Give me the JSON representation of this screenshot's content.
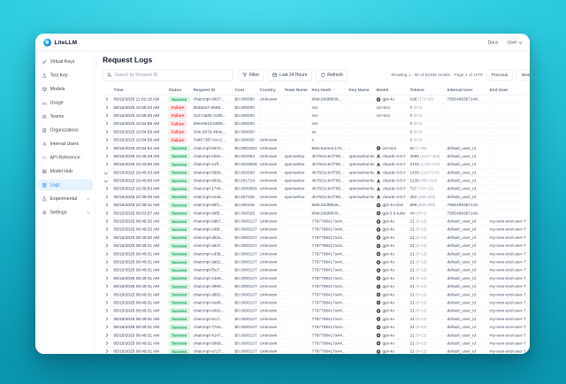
{
  "colors": {
    "accent": "#1677ff",
    "success_bg": "#d9f5e6",
    "success_text": "#149a50",
    "failure_bg": "#fde6e6",
    "failure_text": "#e5484d",
    "background_top": "#4bdcec",
    "background_bottom": "#0b97b1"
  },
  "navbar": {
    "brand": "LiteLLM",
    "docs_label": "Docs",
    "user_label": "User"
  },
  "sidebar": {
    "items": [
      {
        "label": "Virtual Keys",
        "icon": "key-icon",
        "active": false,
        "submenu": false
      },
      {
        "label": "Test Key",
        "icon": "test-key-icon",
        "active": false,
        "submenu": false
      },
      {
        "label": "Models",
        "icon": "models-icon",
        "active": false,
        "submenu": false
      },
      {
        "label": "Usage",
        "icon": "usage-icon",
        "active": false,
        "submenu": false
      },
      {
        "label": "Teams",
        "icon": "teams-icon",
        "active": false,
        "submenu": false
      },
      {
        "label": "Organizations",
        "icon": "organizations-icon",
        "active": false,
        "submenu": false
      },
      {
        "label": "Internal Users",
        "icon": "internal-users-icon",
        "active": false,
        "submenu": false
      },
      {
        "label": "API Reference",
        "icon": "api-reference-icon",
        "active": false,
        "submenu": false
      },
      {
        "label": "Model Hub",
        "icon": "model-hub-icon",
        "active": false,
        "submenu": false
      },
      {
        "label": "Logs",
        "icon": "logs-icon",
        "active": true,
        "submenu": false
      },
      {
        "label": "Experimental",
        "icon": "experimental-icon",
        "active": false,
        "submenu": true
      },
      {
        "label": "Settings",
        "icon": "settings-icon",
        "active": false,
        "submenu": true
      }
    ]
  },
  "page": {
    "title": "Request Logs"
  },
  "toolbar": {
    "search_placeholder": "Search by Request ID",
    "filter_label": "Filter",
    "range_label": "Last 24 Hours",
    "refresh_label": "Refresh"
  },
  "pagination": {
    "showing": "Showing 1 - 50 of 53484 results",
    "page": "Page 1 of 1070",
    "previous_label": "Previous",
    "next_label": "Next"
  },
  "table": {
    "columns": [
      "",
      "Time",
      "Status",
      "Request ID",
      "Cost",
      "Country",
      "Team Name",
      "Key Hash",
      "Key Name",
      "Model",
      "Tokens",
      "Internal User",
      "End User"
    ],
    "rows": [
      {
        "expanded": false,
        "time": "05/15/2025 11:02:18 AM",
        "status": "Success",
        "request_id": "chatcmpl-8807...",
        "cost": "$0.000080",
        "country": "Unknown",
        "team": "-",
        "key_hash": "88dc28d9f836...",
        "key_name": "-",
        "model": "gpt-4o",
        "provider": "openai",
        "tokens": "198",
        "tokens_detail": "(173+25)",
        "internal_user": "7955489387148...",
        "end_user": "-"
      },
      {
        "expanded": false,
        "time": "05/15/2025 10:55:02 AM",
        "status": "Failure",
        "request_id": "d8da5a7-eb88...",
        "cost": "$0.000000",
        "country": "-",
        "team": "-",
        "key_hash": "sss",
        "key_name": "-",
        "model": "o3-mini",
        "provider": "",
        "tokens": "0",
        "tokens_detail": "(0+0)",
        "internal_user": "-",
        "end_user": "-"
      },
      {
        "expanded": false,
        "time": "05/15/2025 10:55:00 AM",
        "status": "Failure",
        "request_id": "4347da9b-318b...",
        "cost": "$0.000000",
        "country": "-",
        "team": "-",
        "key_hash": "sss",
        "key_name": "-",
        "model": "o3-mini",
        "provider": "",
        "tokens": "0",
        "tokens_detail": "(0+0)",
        "internal_user": "-",
        "end_user": "-"
      },
      {
        "expanded": false,
        "time": "05/15/2025 10:54:59 AM",
        "status": "Failure",
        "request_id": "a9ee681d-b8b8...",
        "cost": "$0.000000",
        "country": "-",
        "team": "-",
        "key_hash": "sss",
        "key_name": "-",
        "model": "",
        "provider": "",
        "tokens": "0",
        "tokens_detail": "(0+0)",
        "internal_user": "-",
        "end_user": "-"
      },
      {
        "expanded": false,
        "time": "05/15/2025 10:54:59 AM",
        "status": "Failure",
        "request_id": "334c387d-4b4e...",
        "cost": "$0.000000",
        "country": "-",
        "team": "-",
        "key_hash": "ss",
        "key_name": "-",
        "model": "",
        "provider": "",
        "tokens": "0",
        "tokens_detail": "(0+0)",
        "internal_user": "-",
        "end_user": "-"
      },
      {
        "expanded": false,
        "time": "05/15/2025 10:54:58 AM",
        "status": "Failure",
        "request_id": "7eb67387-bcc2...",
        "cost": "$0.000000",
        "country": "Unknown",
        "team": "-",
        "key_hash": "s",
        "key_name": "-",
        "model": "",
        "provider": "",
        "tokens": "0",
        "tokens_detail": "(0+0)",
        "internal_user": "-",
        "end_user": "-"
      },
      {
        "expanded": false,
        "time": "05/15/2025 10:54:54 AM",
        "status": "Success",
        "request_id": "chatcmpl-b87e...",
        "cost": "$0.0003382",
        "country": "Unknown",
        "team": "-",
        "key_hash": "86ec5a2eac17e...",
        "key_name": "-",
        "model": "o3-mini",
        "provider": "openai",
        "tokens": "92",
        "tokens_detail": "(7+85)",
        "internal_user": "default_user_id",
        "end_user": "-"
      },
      {
        "expanded": false,
        "time": "05/15/2025 10:45:49 AM",
        "status": "Success",
        "request_id": "chatcmpl-ebbe...",
        "cost": "$0.002054",
        "country": "Unknown",
        "team": "openwebui",
        "key_hash": "4b7651c9cf795...",
        "key_name": "openwebui-key-2",
        "model": "claude-3-5-hai...",
        "provider": "anthropic",
        "tokens": "2580",
        "tokens_detail": "(2127+453)",
        "internal_user": "default_user_id",
        "end_user": "-"
      },
      {
        "expanded": false,
        "time": "05/15/2025 10:43:00 AM",
        "status": "Success",
        "request_id": "chatcmpl-41ff...",
        "cost": "$0.0029968",
        "country": "Unknown",
        "team": "openwebui",
        "key_hash": "4b7651c9cf795...",
        "key_name": "openwebui-key-2",
        "model": "claude-3-5-hai...",
        "provider": "anthropic",
        "tokens": "2102",
        "tokens_detail": "(1732+370)",
        "internal_user": "default_user_id",
        "end_user": "-"
      },
      {
        "expanded": true,
        "time": "05/15/2025 10:40:33 AM",
        "status": "Success",
        "request_id": "chatcmpl-5858...",
        "cost": "$0.002030",
        "country": "Unknown",
        "team": "openwebui",
        "key_hash": "4b7651c9cf795...",
        "key_name": "openwebui-key-2",
        "model": "claude-3-5-hai...",
        "provider": "anthropic",
        "tokens": "1433",
        "tokens_detail": "(1157+276)",
        "internal_user": "default_user_id",
        "end_user": "-"
      },
      {
        "expanded": true,
        "time": "05/15/2025 10:40:00 AM",
        "status": "Success",
        "request_id": "chatcmpl-883a...",
        "cost": "$0.001724",
        "country": "Unknown",
        "team": "openwebui",
        "key_hash": "4b7651c9cf795...",
        "key_name": "openwebui-key-2",
        "model": "claude-3-5-hai...",
        "provider": "anthropic",
        "tokens": "1139",
        "tokens_detail": "(885+254)",
        "internal_user": "default_user_id",
        "end_user": "-"
      },
      {
        "expanded": false,
        "time": "05/15/2025 10:39:53 AM",
        "status": "Success",
        "request_id": "chatcmpl-1748...",
        "cost": "$0.0000855",
        "country": "Unknown",
        "team": "openwebui",
        "key_hash": "4b7651c9cf795...",
        "key_name": "openwebui-key-2",
        "model": "claude-3-5-hai...",
        "provider": "anthropic",
        "tokens": "727",
        "tokens_detail": "(704+23)",
        "internal_user": "default_user_id",
        "end_user": "-"
      },
      {
        "expanded": false,
        "time": "05/15/2025 10:39:46 AM",
        "status": "Success",
        "request_id": "chatcmpl-eea6...",
        "cost": "$0.007336",
        "country": "Unknown",
        "team": "openwebui",
        "key_hash": "4b7651c9cf795...",
        "key_name": "openwebui-key-2",
        "model": "claude-3-5-hai...",
        "provider": "anthropic",
        "tokens": "462",
        "tokens_detail": "(160+302)",
        "internal_user": "default_user_id",
        "end_user": "-"
      },
      {
        "expanded": false,
        "time": "05/15/2025 10:38:41 AM",
        "status": "Success",
        "request_id": "chatcmpl-88f1...",
        "cost": "$0.000445",
        "country": "Unknown",
        "team": "-",
        "key_hash": "88dc28d9f836...",
        "key_name": "-",
        "model": "gpt-4o-mini",
        "provider": "openai",
        "tokens": "899",
        "tokens_detail": "(209+690)",
        "internal_user": "7955489387148...",
        "end_user": "-"
      },
      {
        "expanded": false,
        "time": "05/15/2025 09:53:57 AM",
        "status": "Success",
        "request_id": "chatcmpl-88f5...",
        "cost": "$0.000029",
        "country": "Unknown",
        "team": "-",
        "key_hash": "88dc28d9f836...",
        "key_name": "-",
        "model": "gpt-3.5-turbo",
        "provider": "openai",
        "tokens": "44",
        "tokens_detail": "(43+1)",
        "internal_user": "7955489387148...",
        "end_user": "-"
      },
      {
        "expanded": false,
        "time": "05/15/2025 08:49:32 AM",
        "status": "Success",
        "request_id": "chatcmpl-6db7...",
        "cost": "$0.0000137",
        "country": "Unknown",
        "team": "-",
        "key_hash": "7787798417a44...",
        "key_name": "-",
        "model": "gpt-4o",
        "provider": "openai",
        "tokens": "21",
        "tokens_detail": "(9+12)",
        "internal_user": "default_user_id",
        "end_user": "my-new-end-user-7"
      },
      {
        "expanded": false,
        "time": "05/15/2025 08:49:32 AM",
        "status": "Success",
        "request_id": "chatcmpl-2d8f...",
        "cost": "$0.0000137",
        "country": "Unknown",
        "team": "-",
        "key_hash": "7787798417a44...",
        "key_name": "-",
        "model": "gpt-4o",
        "provider": "openai",
        "tokens": "21",
        "tokens_detail": "(9+12)",
        "internal_user": "default_user_id",
        "end_user": "my-new-end-user-7"
      },
      {
        "expanded": false,
        "time": "05/15/2025 08:49:32 AM",
        "status": "Success",
        "request_id": "chatcmpl-d52a...",
        "cost": "$0.0000137",
        "country": "Unknown",
        "team": "-",
        "key_hash": "7787798417a44...",
        "key_name": "-",
        "model": "gpt-4o",
        "provider": "openai",
        "tokens": "21",
        "tokens_detail": "(9+12)",
        "internal_user": "default_user_id",
        "end_user": "my-new-end-user-7"
      },
      {
        "expanded": false,
        "time": "05/15/2025 08:49:31 AM",
        "status": "Success",
        "request_id": "chatcmpl-a847...",
        "cost": "$0.0000137",
        "country": "Unknown",
        "team": "-",
        "key_hash": "7787798417a44...",
        "key_name": "-",
        "model": "gpt-4o",
        "provider": "openai",
        "tokens": "21",
        "tokens_detail": "(9+12)",
        "internal_user": "default_user_id",
        "end_user": "my-new-end-user-7"
      },
      {
        "expanded": false,
        "time": "05/15/2025 08:49:31 AM",
        "status": "Success",
        "request_id": "chatcmpl-cd3b...",
        "cost": "$0.0000137",
        "country": "Unknown",
        "team": "-",
        "key_hash": "7787798417a44...",
        "key_name": "-",
        "model": "gpt-4o",
        "provider": "openai",
        "tokens": "21",
        "tokens_detail": "(9+12)",
        "internal_user": "default_user_id",
        "end_user": "my-new-end-user-7"
      },
      {
        "expanded": false,
        "time": "05/15/2025 08:49:31 AM",
        "status": "Success",
        "request_id": "chatcmpl-da61...",
        "cost": "$0.0000137",
        "country": "Unknown",
        "team": "-",
        "key_hash": "7787798417a44...",
        "key_name": "-",
        "model": "gpt-4o",
        "provider": "openai",
        "tokens": "21",
        "tokens_detail": "(9+12)",
        "internal_user": "default_user_id",
        "end_user": "my-new-end-user-7"
      },
      {
        "expanded": false,
        "time": "05/15/2025 08:49:31 AM",
        "status": "Success",
        "request_id": "chatcmpl-f5e7...",
        "cost": "$0.0000137",
        "country": "Unknown",
        "team": "-",
        "key_hash": "7787798417a44...",
        "key_name": "-",
        "model": "gpt-4o",
        "provider": "openai",
        "tokens": "21",
        "tokens_detail": "(9+12)",
        "internal_user": "default_user_id",
        "end_user": "my-new-end-user-7"
      },
      {
        "expanded": false,
        "time": "05/15/2025 08:49:31 AM",
        "status": "Success",
        "request_id": "chatcmpl-43e9...",
        "cost": "$0.0000137",
        "country": "Unknown",
        "team": "-",
        "key_hash": "7787798417a44...",
        "key_name": "-",
        "model": "gpt-4o",
        "provider": "openai",
        "tokens": "21",
        "tokens_detail": "(9+12)",
        "internal_user": "default_user_id",
        "end_user": "my-new-end-user-7"
      },
      {
        "expanded": false,
        "time": "05/15/2025 08:49:31 AM",
        "status": "Success",
        "request_id": "chatcmpl-d969...",
        "cost": "$0.0000137",
        "country": "Unknown",
        "team": "-",
        "key_hash": "7787798417a44...",
        "key_name": "-",
        "model": "gpt-4o",
        "provider": "openai",
        "tokens": "21",
        "tokens_detail": "(9+12)",
        "internal_user": "default_user_id",
        "end_user": "my-new-end-user-7"
      },
      {
        "expanded": false,
        "time": "05/15/2025 08:49:31 AM",
        "status": "Success",
        "request_id": "chatcmpl-d865...",
        "cost": "$0.0000137",
        "country": "Unknown",
        "team": "-",
        "key_hash": "7787798417a44...",
        "key_name": "-",
        "model": "gpt-4o",
        "provider": "openai",
        "tokens": "21",
        "tokens_detail": "(9+12)",
        "internal_user": "default_user_id",
        "end_user": "my-new-end-user-7"
      },
      {
        "expanded": false,
        "time": "05/15/2025 08:49:31 AM",
        "status": "Success",
        "request_id": "chatcmpl-6ed8...",
        "cost": "$0.0000137",
        "country": "Unknown",
        "team": "-",
        "key_hash": "7787798417a44...",
        "key_name": "-",
        "model": "gpt-4o",
        "provider": "openai",
        "tokens": "21",
        "tokens_detail": "(9+12)",
        "internal_user": "default_user_id",
        "end_user": "my-new-end-user-7"
      },
      {
        "expanded": false,
        "time": "05/15/2025 08:49:31 AM",
        "status": "Success",
        "request_id": "chatcmpl-e891...",
        "cost": "$0.0000137",
        "country": "Unknown",
        "team": "-",
        "key_hash": "7787798417a44...",
        "key_name": "-",
        "model": "gpt-4o",
        "provider": "openai",
        "tokens": "21",
        "tokens_detail": "(9+12)",
        "internal_user": "default_user_id",
        "end_user": "my-new-end-user-7"
      },
      {
        "expanded": false,
        "time": "05/15/2025 08:49:31 AM",
        "status": "Success",
        "request_id": "chatcmpl-6ccf...",
        "cost": "$0.0000137",
        "country": "Unknown",
        "team": "-",
        "key_hash": "7787798417a44...",
        "key_name": "-",
        "model": "gpt-4o",
        "provider": "openai",
        "tokens": "21",
        "tokens_detail": "(9+12)",
        "internal_user": "default_user_id",
        "end_user": "my-new-end-user-7"
      },
      {
        "expanded": false,
        "time": "05/15/2025 08:49:31 AM",
        "status": "Success",
        "request_id": "chatcmpl-77e5...",
        "cost": "$0.0000137",
        "country": "Unknown",
        "team": "-",
        "key_hash": "7787798417a44...",
        "key_name": "-",
        "model": "gpt-4o",
        "provider": "openai",
        "tokens": "21",
        "tokens_detail": "(9+12)",
        "internal_user": "default_user_id",
        "end_user": "my-new-end-user-7"
      },
      {
        "expanded": false,
        "time": "05/15/2025 08:49:31 AM",
        "status": "Success",
        "request_id": "chatcmpl-4147...",
        "cost": "$0.0000137",
        "country": "Unknown",
        "team": "-",
        "key_hash": "7787798417a44...",
        "key_name": "-",
        "model": "gpt-4o",
        "provider": "openai",
        "tokens": "21",
        "tokens_detail": "(9+12)",
        "internal_user": "default_user_id",
        "end_user": "my-new-end-user-7"
      },
      {
        "expanded": false,
        "time": "05/15/2025 08:49:31 AM",
        "status": "Success",
        "request_id": "chatcmpl-8968...",
        "cost": "$0.0000137",
        "country": "Unknown",
        "team": "-",
        "key_hash": "7787798417a44...",
        "key_name": "-",
        "model": "gpt-4o",
        "provider": "openai",
        "tokens": "21",
        "tokens_detail": "(9+12)",
        "internal_user": "default_user_id",
        "end_user": "my-new-end-user-7"
      },
      {
        "expanded": false,
        "time": "05/15/2025 08:49:31 AM",
        "status": "Success",
        "request_id": "chatcmpl-a727...",
        "cost": "$0.0000137",
        "country": "Unknown",
        "team": "-",
        "key_hash": "7787798417a44...",
        "key_name": "-",
        "model": "gpt-4o",
        "provider": "openai",
        "tokens": "21",
        "tokens_detail": "(9+12)",
        "internal_user": "default_user_id",
        "end_user": "my-new-end-user-7"
      }
    ]
  }
}
